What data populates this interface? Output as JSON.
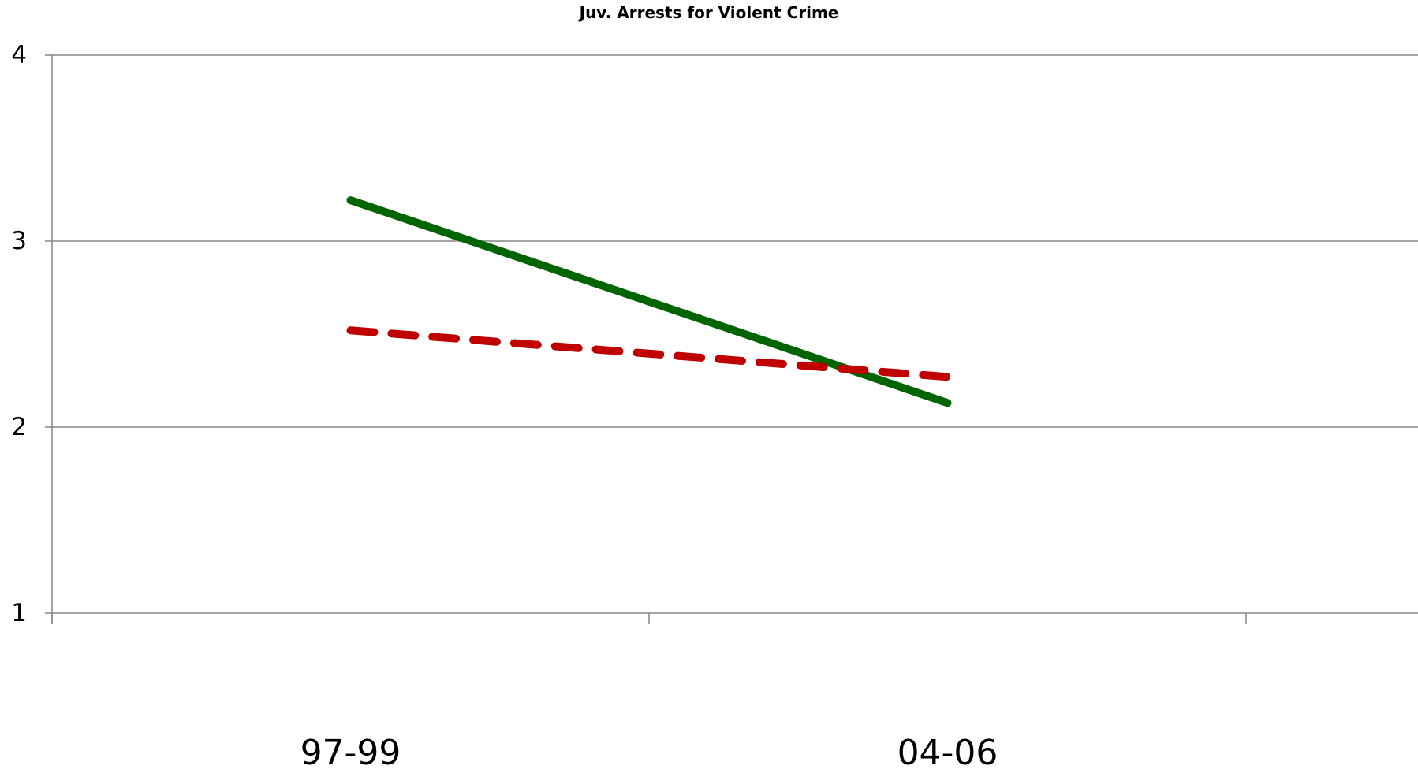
{
  "chart_data": {
    "type": "line",
    "title": "Juv. Arrests for Violent Crime",
    "xlabel": "",
    "ylabel": "",
    "categories": [
      "97-99",
      "04-06"
    ],
    "ylim": [
      1,
      4
    ],
    "yticks": [
      "1",
      "2",
      "3",
      "4"
    ],
    "grid": true,
    "legend": "none",
    "series": [
      {
        "values": [
          3.22,
          2.13
        ],
        "color": "#006400",
        "style": "solid"
      },
      {
        "values": [
          2.52,
          2.27
        ],
        "color": "#C00000",
        "style": "dashed"
      }
    ]
  }
}
